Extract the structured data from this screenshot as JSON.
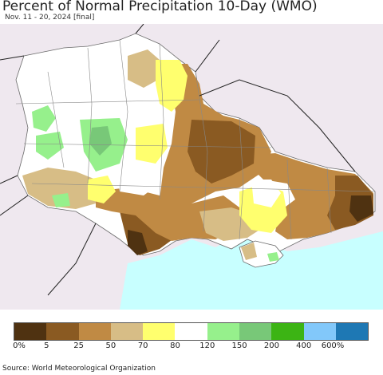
{
  "header": {
    "title": "Percent of Normal Precipitation 10-Day (WMO)",
    "subtitle": "Nov. 11 - 20, 2024 [final]"
  },
  "legend": {
    "colors": [
      "#4f3211",
      "#8a5a22",
      "#c08a44",
      "#d7bd86",
      "#ffff6e",
      "#ffffff",
      "#96f08c",
      "#78c878",
      "#3cb414",
      "#82c8fa",
      "#1e78b4"
    ],
    "labels": [
      "0%",
      "5",
      "25",
      "50",
      "70",
      "80",
      "120",
      "150",
      "200",
      "400",
      "600%"
    ]
  },
  "footer": {
    "source": "Source: World Meteorological Organization"
  }
}
